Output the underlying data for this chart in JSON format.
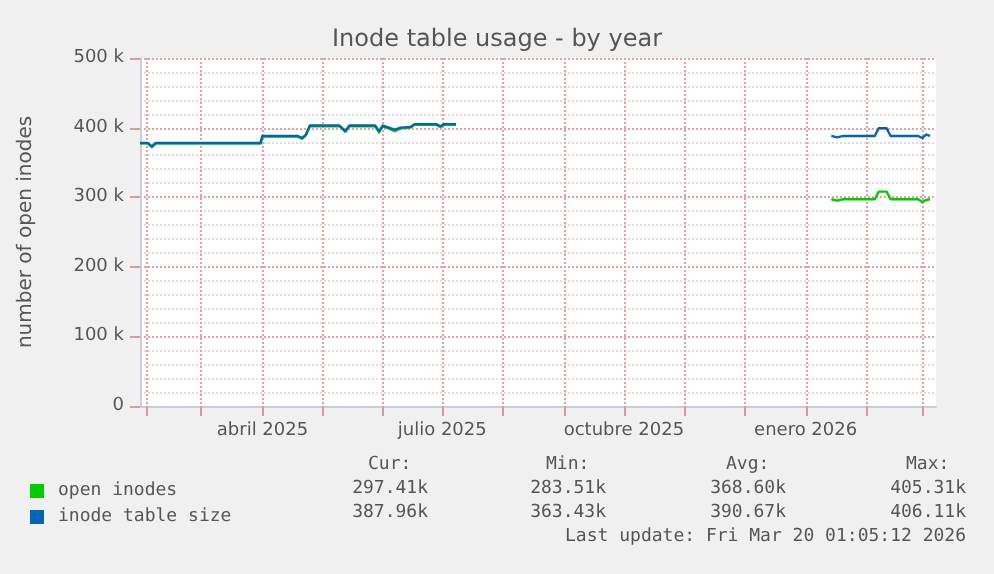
{
  "chart_data": {
    "type": "line",
    "title": "Inode table usage - by year",
    "ylabel": "number of open inodes",
    "x": [
      "2025-01-29",
      "2025-02-02",
      "2025-02-04",
      "2025-02-06",
      "2025-03-31",
      "2025-04-01",
      "2025-04-19",
      "2025-04-21",
      "2025-04-23",
      "2025-04-25",
      "2025-05-07",
      "2025-05-10",
      "2025-05-13",
      "2025-05-15",
      "2025-05-28",
      "2025-05-30",
      "2025-06-01",
      "2025-06-07",
      "2025-06-10",
      "2025-06-15",
      "2025-06-17",
      "2025-06-28",
      "2025-06-30",
      "2025-07-02",
      "2025-07-08",
      "2025-10-01",
      "2026-01-14",
      "2026-01-17",
      "2026-01-20",
      "2026-02-05",
      "2026-02-07",
      "2026-02-11",
      "2026-02-13",
      "2026-02-27",
      "2026-03-01",
      "2026-03-03",
      "2026-03-05"
    ],
    "series": [
      {
        "name": "open inodes",
        "color": "#00cc00",
        "values": [
          377,
          377,
          372,
          377,
          377,
          387,
          387,
          384,
          389,
          402,
          402,
          402,
          394,
          402,
          402,
          393,
          402,
          395,
          399,
          400,
          404,
          404,
          401,
          404,
          404,
          null,
          297,
          295,
          297,
          297,
          308,
          308,
          297,
          297,
          293,
          296,
          297
        ]
      },
      {
        "name": "inode table size",
        "color": "#0066b3",
        "values": [
          378,
          378,
          373,
          378,
          378,
          388,
          388,
          385,
          390,
          403,
          403,
          403,
          395,
          403,
          403,
          395,
          403,
          397,
          400,
          401,
          405,
          405,
          402,
          405,
          405,
          null,
          388,
          386,
          388,
          388,
          399,
          399,
          388,
          388,
          385,
          390,
          388
        ]
      }
    ],
    "xlim": [
      "2025-01-29",
      "2026-03-08"
    ],
    "xticks": [
      {
        "value": "2025-02-01",
        "label": null
      },
      {
        "value": "2025-03-01",
        "label": null
      },
      {
        "value": "2025-04-01",
        "label": "abril 2025"
      },
      {
        "value": "2025-05-01",
        "label": null
      },
      {
        "value": "2025-06-01",
        "label": null
      },
      {
        "value": "2025-07-01",
        "label": "julio 2025"
      },
      {
        "value": "2025-08-01",
        "label": null
      },
      {
        "value": "2025-09-01",
        "label": null
      },
      {
        "value": "2025-10-01",
        "label": "octubre 2025"
      },
      {
        "value": "2025-11-01",
        "label": null
      },
      {
        "value": "2025-12-01",
        "label": null
      },
      {
        "value": "2026-01-01",
        "label": "enero 2026"
      },
      {
        "value": "2026-02-01",
        "label": null
      },
      {
        "value": "2026-03-01",
        "label": null
      }
    ],
    "ylim": [
      0,
      500
    ],
    "yticks": [
      0,
      {
        "value": 100,
        "label": "100 k"
      },
      {
        "value": 200,
        "label": "200 k"
      },
      {
        "value": 300,
        "label": "300 k"
      },
      {
        "value": 400,
        "label": "400 k"
      },
      {
        "value": 500,
        "label": "500 k"
      }
    ],
    "grid": true,
    "legend": "bottom left",
    "annotations": [
      "Cur:",
      "Min:",
      "Avg:",
      "Max:",
      "297.41k",
      "283.51k",
      "368.60k",
      "405.31k",
      "387.96k",
      "363.43k",
      "390.67k",
      "406.11k",
      "Last update: Fri Mar 20 01:05:12 2026"
    ]
  }
}
